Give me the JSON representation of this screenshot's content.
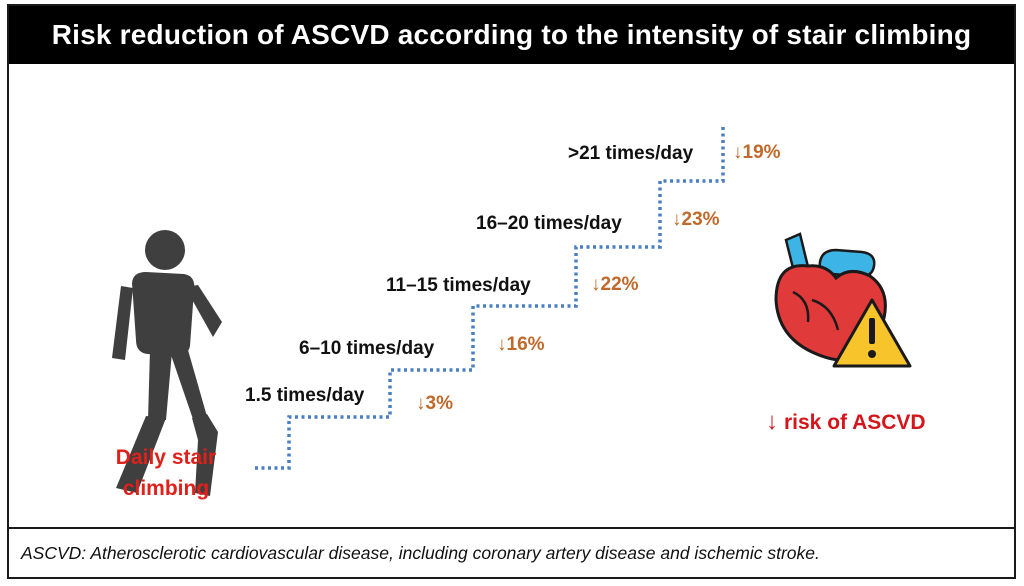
{
  "title": "Risk reduction of ASCVD according to the intensity of stair climbing",
  "steps": [
    {
      "label": "1.5 times/day",
      "reduction": "↓3%"
    },
    {
      "label": "6–10 times/day",
      "reduction": "↓16%"
    },
    {
      "label": "11–15 times/day",
      "reduction": "↓22%"
    },
    {
      "label": "16–20 times/day",
      "reduction": "↓23%"
    },
    {
      "label": ">21 times/day",
      "reduction": "↓19%"
    }
  ],
  "left_caption": "Daily stair climbing",
  "right_caption": {
    "arrow": "↓",
    "text": "risk of ASCVD"
  },
  "footnote": "ASCVD: Atherosclerotic cardiovascular disease, including coronary artery disease and ischemic stroke.",
  "colors": {
    "stairs": "#4a7fc1",
    "reduction": "#c0692a",
    "caption_red": "#e0201b",
    "walker": "#3f3f3f",
    "heart": "#e03a3a",
    "warning": "#f7c52b"
  }
}
